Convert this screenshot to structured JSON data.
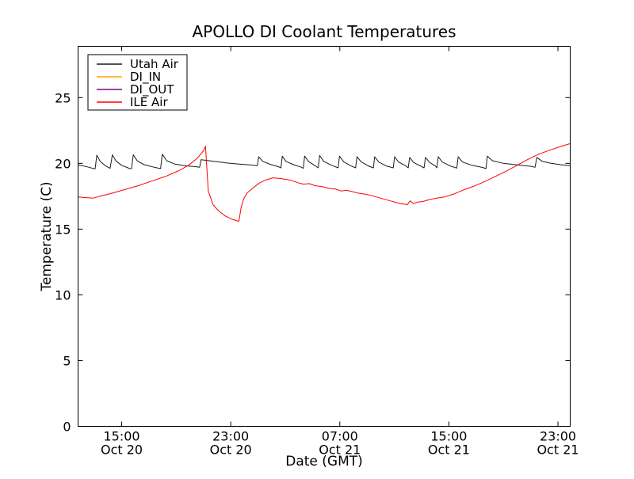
{
  "chart_data": {
    "type": "line",
    "title": "APOLLO DI Coolant Temperatures",
    "xlabel": "Date (GMT)",
    "ylabel": "Temperature (C)",
    "x_units": "hours since Oct 20 00:00 GMT",
    "xlim": [
      11.8,
      47.9
    ],
    "ylim": [
      0,
      28.9
    ],
    "grid": false,
    "legend_position": "upper left",
    "yticks": [
      {
        "value": 0,
        "label": "0"
      },
      {
        "value": 5,
        "label": "5"
      },
      {
        "value": 10,
        "label": "10"
      },
      {
        "value": 15,
        "label": "15"
      },
      {
        "value": 20,
        "label": "20"
      },
      {
        "value": 25,
        "label": "25"
      }
    ],
    "xticks": [
      {
        "value": 15,
        "time": "15:00",
        "date": "Oct 20"
      },
      {
        "value": 23,
        "time": "23:00",
        "date": "Oct 20"
      },
      {
        "value": 31,
        "time": "07:00",
        "date": "Oct 21"
      },
      {
        "value": 39,
        "time": "15:00",
        "date": "Oct 21"
      },
      {
        "value": 47,
        "time": "23:00",
        "date": "Oct 21"
      }
    ],
    "series": [
      {
        "name": "Utah Air",
        "color": "#1a1a1a",
        "points": [
          [
            11.8,
            19.88
          ],
          [
            12.2,
            19.8
          ],
          [
            12.6,
            19.7
          ],
          [
            12.95,
            19.6
          ],
          [
            13.05,
            19.58
          ],
          [
            13.18,
            20.62
          ],
          [
            13.42,
            20.15
          ],
          [
            13.8,
            19.82
          ],
          [
            14.15,
            19.62
          ],
          [
            14.32,
            20.65
          ],
          [
            14.58,
            20.18
          ],
          [
            15.0,
            19.85
          ],
          [
            15.55,
            19.62
          ],
          [
            15.72,
            19.58
          ],
          [
            15.85,
            20.65
          ],
          [
            16.15,
            20.18
          ],
          [
            16.65,
            19.9
          ],
          [
            17.4,
            19.7
          ],
          [
            17.85,
            19.6
          ],
          [
            17.98,
            20.7
          ],
          [
            18.3,
            20.2
          ],
          [
            18.9,
            19.95
          ],
          [
            19.6,
            19.82
          ],
          [
            20.4,
            19.75
          ],
          [
            20.72,
            19.7
          ],
          [
            20.82,
            20.28
          ],
          [
            21.3,
            20.22
          ],
          [
            22.0,
            20.12
          ],
          [
            22.8,
            20.02
          ],
          [
            23.6,
            19.95
          ],
          [
            24.4,
            19.88
          ],
          [
            24.95,
            19.82
          ],
          [
            25.05,
            20.5
          ],
          [
            25.35,
            20.15
          ],
          [
            25.9,
            19.92
          ],
          [
            26.5,
            19.75
          ],
          [
            26.68,
            19.65
          ],
          [
            26.78,
            20.55
          ],
          [
            27.05,
            20.15
          ],
          [
            27.6,
            19.9
          ],
          [
            28.2,
            19.7
          ],
          [
            28.32,
            19.62
          ],
          [
            28.42,
            20.55
          ],
          [
            28.72,
            20.12
          ],
          [
            29.2,
            19.82
          ],
          [
            29.42,
            19.66
          ],
          [
            29.52,
            20.6
          ],
          [
            29.82,
            20.15
          ],
          [
            30.4,
            19.85
          ],
          [
            30.88,
            19.66
          ],
          [
            30.98,
            20.55
          ],
          [
            31.28,
            20.12
          ],
          [
            31.8,
            19.82
          ],
          [
            32.16,
            19.66
          ],
          [
            32.26,
            20.5
          ],
          [
            32.56,
            20.12
          ],
          [
            33.1,
            19.8
          ],
          [
            33.46,
            19.66
          ],
          [
            33.56,
            20.5
          ],
          [
            33.86,
            20.1
          ],
          [
            34.4,
            19.8
          ],
          [
            34.92,
            19.66
          ],
          [
            35.02,
            20.5
          ],
          [
            35.32,
            20.1
          ],
          [
            35.85,
            19.8
          ],
          [
            36.02,
            19.66
          ],
          [
            36.12,
            20.45
          ],
          [
            36.42,
            20.06
          ],
          [
            36.9,
            19.8
          ],
          [
            37.18,
            19.66
          ],
          [
            37.28,
            20.45
          ],
          [
            37.6,
            20.06
          ],
          [
            38.0,
            19.8
          ],
          [
            38.12,
            19.66
          ],
          [
            38.22,
            20.5
          ],
          [
            38.52,
            20.1
          ],
          [
            39.1,
            19.8
          ],
          [
            39.58,
            19.64
          ],
          [
            39.68,
            20.5
          ],
          [
            40.0,
            20.1
          ],
          [
            40.7,
            19.85
          ],
          [
            41.5,
            19.68
          ],
          [
            41.72,
            19.6
          ],
          [
            41.82,
            20.55
          ],
          [
            42.2,
            20.2
          ],
          [
            43.0,
            20.0
          ],
          [
            44.0,
            19.88
          ],
          [
            45.0,
            19.78
          ],
          [
            45.32,
            19.7
          ],
          [
            45.45,
            20.45
          ],
          [
            45.85,
            20.15
          ],
          [
            46.5,
            20.0
          ],
          [
            47.2,
            19.9
          ],
          [
            47.9,
            19.82
          ]
        ]
      },
      {
        "name": "DI_IN",
        "color": "#ffa500",
        "points": []
      },
      {
        "name": "DI_OUT",
        "color": "#800080",
        "points": []
      },
      {
        "name": "ILE Air",
        "color": "#ff0000",
        "points": [
          [
            11.8,
            17.45
          ],
          [
            12.3,
            17.4
          ],
          [
            12.9,
            17.35
          ],
          [
            13.4,
            17.5
          ],
          [
            14.2,
            17.7
          ],
          [
            15.2,
            18.0
          ],
          [
            16.2,
            18.3
          ],
          [
            17.2,
            18.65
          ],
          [
            18.2,
            19.0
          ],
          [
            19.2,
            19.45
          ],
          [
            19.9,
            19.85
          ],
          [
            20.5,
            20.35
          ],
          [
            21.0,
            20.95
          ],
          [
            21.15,
            21.3
          ],
          [
            21.35,
            17.9
          ],
          [
            21.7,
            16.85
          ],
          [
            22.1,
            16.4
          ],
          [
            22.6,
            16.0
          ],
          [
            23.1,
            15.75
          ],
          [
            23.45,
            15.63
          ],
          [
            23.6,
            15.6
          ],
          [
            23.75,
            16.6
          ],
          [
            23.95,
            17.3
          ],
          [
            24.2,
            17.75
          ],
          [
            24.6,
            18.1
          ],
          [
            25.1,
            18.5
          ],
          [
            25.6,
            18.75
          ],
          [
            26.1,
            18.9
          ],
          [
            26.6,
            18.85
          ],
          [
            27.1,
            18.78
          ],
          [
            27.5,
            18.68
          ],
          [
            28.0,
            18.5
          ],
          [
            28.35,
            18.42
          ],
          [
            28.75,
            18.46
          ],
          [
            29.2,
            18.3
          ],
          [
            29.7,
            18.24
          ],
          [
            30.2,
            18.1
          ],
          [
            30.7,
            18.04
          ],
          [
            31.1,
            17.9
          ],
          [
            31.5,
            17.95
          ],
          [
            31.9,
            17.85
          ],
          [
            32.3,
            17.75
          ],
          [
            32.9,
            17.65
          ],
          [
            33.5,
            17.5
          ],
          [
            34.1,
            17.32
          ],
          [
            34.7,
            17.15
          ],
          [
            35.2,
            17.0
          ],
          [
            35.7,
            16.9
          ],
          [
            35.95,
            16.85
          ],
          [
            36.15,
            17.15
          ],
          [
            36.4,
            16.95
          ],
          [
            36.7,
            17.05
          ],
          [
            37.1,
            17.1
          ],
          [
            37.6,
            17.25
          ],
          [
            38.1,
            17.35
          ],
          [
            38.7,
            17.45
          ],
          [
            39.3,
            17.65
          ],
          [
            40.0,
            17.95
          ],
          [
            40.8,
            18.25
          ],
          [
            41.6,
            18.6
          ],
          [
            42.4,
            19.0
          ],
          [
            43.2,
            19.4
          ],
          [
            44.0,
            19.85
          ],
          [
            44.8,
            20.3
          ],
          [
            45.6,
            20.7
          ],
          [
            46.4,
            21.0
          ],
          [
            47.1,
            21.25
          ],
          [
            47.9,
            21.5
          ]
        ]
      }
    ],
    "frame_color": "#000000"
  }
}
